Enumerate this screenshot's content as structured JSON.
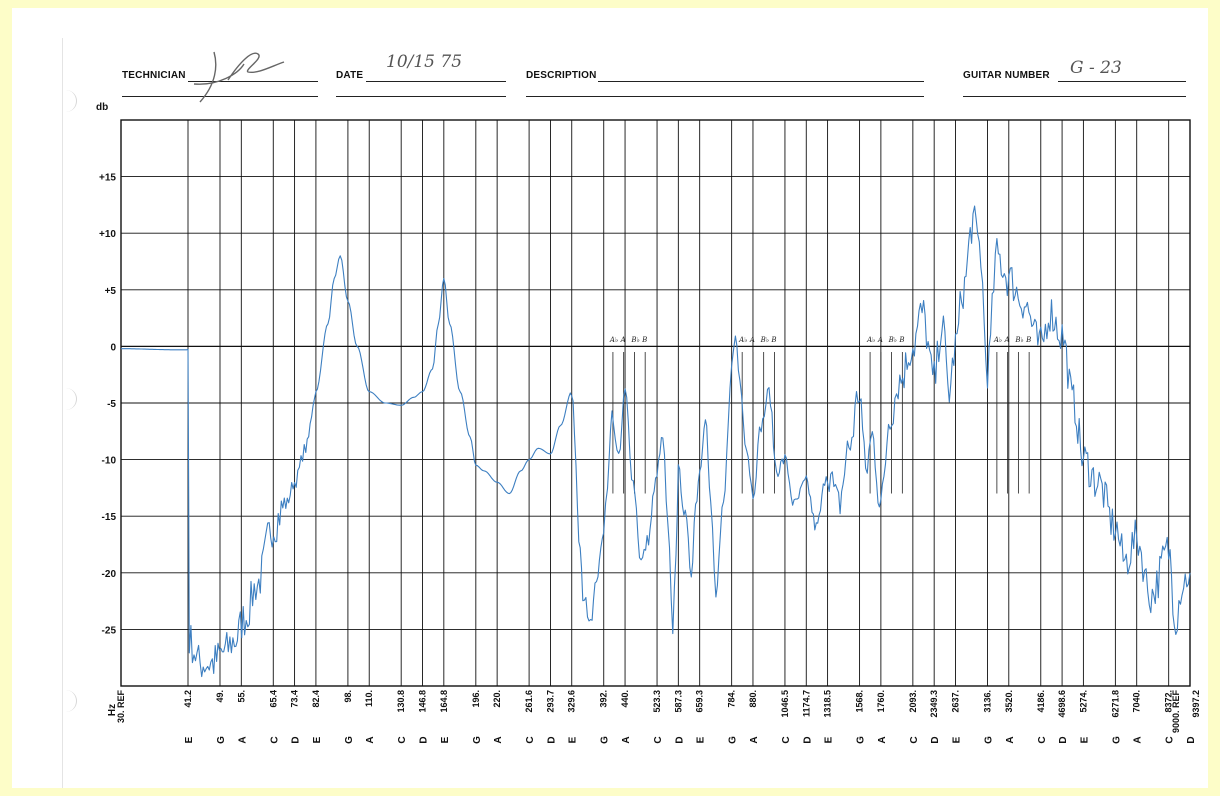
{
  "form": {
    "technician_label": "TECHNICIAN",
    "technician_signature": "JR",
    "date_label": "DATE",
    "date_value": "10/15 75",
    "description_label": "DESCRIPTION",
    "guitar_number_label": "GUITAR NUMBER",
    "guitar_number_value": "G - 23"
  },
  "chart_data": {
    "type": "line",
    "title": "",
    "ylabel": "db",
    "xlabel": "Hz",
    "y_ticks": [
      "+15",
      "+10",
      "+5",
      "0",
      "-5",
      "-10",
      "-15",
      "-20",
      "-25"
    ],
    "ylim": [
      -30,
      20
    ],
    "grid": true,
    "line_color": "#3d7fc1",
    "x_axis": [
      {
        "freq": "30. REF",
        "note": ""
      },
      {
        "freq": "41.2",
        "note": "E"
      },
      {
        "freq": "49.",
        "note": "G"
      },
      {
        "freq": "55.",
        "note": "A"
      },
      {
        "freq": "65.4",
        "note": "C"
      },
      {
        "freq": "73.4",
        "note": "D"
      },
      {
        "freq": "82.4",
        "note": "E"
      },
      {
        "freq": "98.",
        "note": "G"
      },
      {
        "freq": "110.",
        "note": "A"
      },
      {
        "freq": "130.8",
        "note": "C"
      },
      {
        "freq": "146.8",
        "note": "D"
      },
      {
        "freq": "164.8",
        "note": "E"
      },
      {
        "freq": "196.",
        "note": "G"
      },
      {
        "freq": "220.",
        "note": "A"
      },
      {
        "freq": "261.6",
        "note": "C"
      },
      {
        "freq": "293.7",
        "note": "D"
      },
      {
        "freq": "329.6",
        "note": "E"
      },
      {
        "freq": "392.",
        "note": "G"
      },
      {
        "freq": "440.",
        "note": "A"
      },
      {
        "freq": "523.3",
        "note": "C"
      },
      {
        "freq": "587.3",
        "note": "D"
      },
      {
        "freq": "659.3",
        "note": "E"
      },
      {
        "freq": "784.",
        "note": "G"
      },
      {
        "freq": "880.",
        "note": "A"
      },
      {
        "freq": "1046.5",
        "note": "C"
      },
      {
        "freq": "1174.7",
        "note": "D"
      },
      {
        "freq": "1318.5",
        "note": "E"
      },
      {
        "freq": "1568.",
        "note": "G"
      },
      {
        "freq": "1760.",
        "note": "A"
      },
      {
        "freq": "2093.",
        "note": "C"
      },
      {
        "freq": "2349.3",
        "note": "D"
      },
      {
        "freq": "2637.",
        "note": "E"
      },
      {
        "freq": "3136.",
        "note": "G"
      },
      {
        "freq": "3520.",
        "note": "A"
      },
      {
        "freq": "4186.",
        "note": "C"
      },
      {
        "freq": "4698.6",
        "note": "D"
      },
      {
        "freq": "5274.",
        "note": "E"
      },
      {
        "freq": "6271.8",
        "note": "G"
      },
      {
        "freq": "7040.",
        "note": "A"
      },
      {
        "freq": "8372.",
        "note": "C"
      },
      {
        "freq": "9000. REF",
        "note": ""
      },
      {
        "freq": "9397.2",
        "note": "D"
      }
    ],
    "series": [
      {
        "name": "",
        "x": [
          30,
          39,
          41.2,
          41.5,
          44,
          47,
          50,
          53,
          56,
          60,
          65,
          70,
          73.4,
          78,
          82.4,
          88,
          91,
          94,
          98,
          103,
          110,
          120,
          130.8,
          140,
          146.8,
          155,
          160,
          164.8,
          170,
          180,
          190,
          196,
          205,
          220,
          235,
          250,
          261.6,
          275,
          293.7,
          310,
          329.6,
          345,
          350,
          365,
          380,
          392,
          400,
          410,
          425,
          440,
          460,
          480,
          500,
          515,
          523.3,
          540,
          555,
          570,
          580,
          587.3,
          610,
          630,
          645,
          659.3,
          680,
          700,
          720,
          750,
          784,
          800,
          820,
          850,
          880,
          920,
          960,
          1000,
          1046.5,
          1100,
          1174.7,
          1240,
          1318.5,
          1400,
          1480,
          1568,
          1620,
          1680,
          1760,
          1850,
          1950,
          2093,
          2200,
          2349.3,
          2450,
          2550,
          2637,
          2750,
          2900,
          3000,
          3136,
          3300,
          3520,
          3800,
          4186,
          4400,
          4698.6,
          5000,
          5274,
          5700,
          6271.8,
          6600,
          7040,
          7600,
          8372,
          8700,
          9000,
          9397.2
        ],
        "values": [
          -0.2,
          -0.3,
          -0.3,
          -26,
          -28,
          -28,
          -27,
          -26,
          -24,
          -21,
          -16,
          -14,
          -12,
          -9,
          -4,
          2,
          6,
          8,
          4,
          0,
          -4,
          -5,
          -5.2,
          -4.5,
          -4.0,
          -2,
          2,
          6,
          2,
          -4,
          -8,
          -10.5,
          -11,
          -12,
          -13,
          -11,
          -10,
          -9,
          -9.5,
          -7,
          -4,
          -18,
          -22,
          -24,
          -20,
          -16,
          -12,
          -6,
          -10,
          -4,
          -12,
          -19,
          -17,
          -13,
          -11,
          -8,
          -16,
          -25,
          -18,
          -11,
          -15,
          -20,
          -14,
          -11,
          -6,
          -14,
          -22,
          -14,
          -2,
          1,
          -3,
          -9,
          -13,
          -7,
          -4,
          -11,
          -10,
          -14,
          -12,
          -16,
          -11,
          -14,
          -9,
          -4,
          -11,
          -8,
          -14,
          -6,
          -3,
          0,
          3,
          -3,
          2,
          -4,
          0,
          5,
          11,
          9,
          -2,
          8,
          6,
          4,
          0,
          3,
          1,
          -5,
          -10,
          -12,
          -16,
          -19,
          -17,
          -22,
          -18,
          -24,
          -21,
          -20
        ]
      }
    ],
    "annotations": [
      "A♭",
      "A",
      "B♭",
      "B"
    ]
  }
}
